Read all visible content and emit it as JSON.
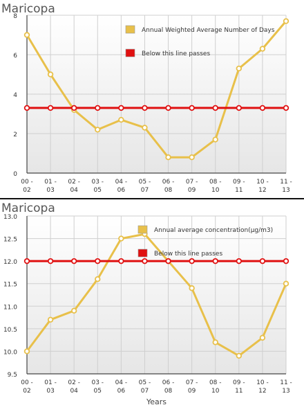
{
  "chart_data": [
    {
      "type": "line",
      "title": "Maricopa",
      "xlabel": "",
      "ylabel": "",
      "categories": [
        "00 - 02",
        "01 - 03",
        "02 - 04",
        "03 - 05",
        "04 - 06",
        "05 - 07",
        "06 - 08",
        "07 - 09",
        "08 - 10",
        "09 - 11",
        "10 - 12",
        "11 - 13"
      ],
      "ylim": [
        0,
        8
      ],
      "yticks": [
        0,
        2,
        4,
        6,
        8
      ],
      "grid": true,
      "legend_position": "top-right",
      "series": [
        {
          "name": "Annual Weighted Average Number of Days",
          "color": "#e8c04a",
          "values": [
            7.0,
            5.0,
            3.2,
            2.2,
            2.7,
            2.3,
            0.8,
            0.8,
            1.7,
            5.3,
            6.3,
            7.7
          ]
        },
        {
          "name": "Below this line passes",
          "color": "#e01010",
          "values": [
            3.3,
            3.3,
            3.3,
            3.3,
            3.3,
            3.3,
            3.3,
            3.3,
            3.3,
            3.3,
            3.3,
            3.3
          ]
        }
      ]
    },
    {
      "type": "line",
      "title": "Maricopa",
      "xlabel": "Years",
      "ylabel": "",
      "categories": [
        "00 - 02",
        "01 - 03",
        "02 - 04",
        "03 - 05",
        "04 - 06",
        "05 - 07",
        "06 - 08",
        "07 - 09",
        "08 - 10",
        "09 - 11",
        "10 - 12",
        "11 - 13"
      ],
      "ylim": [
        9.5,
        13.0
      ],
      "yticks": [
        9.5,
        10.0,
        10.5,
        11.0,
        11.5,
        12.0,
        12.5,
        13.0
      ],
      "grid": true,
      "legend_position": "top-right",
      "series": [
        {
          "name": "Annual average concentration(μg/m3)",
          "color": "#e8c04a",
          "values": [
            10.0,
            10.7,
            10.9,
            11.6,
            12.5,
            12.6,
            12.0,
            11.4,
            10.2,
            9.9,
            10.3,
            11.5
          ]
        },
        {
          "name": "Below this line passes",
          "color": "#e01010",
          "values": [
            12.0,
            12.0,
            12.0,
            12.0,
            12.0,
            12.0,
            12.0,
            12.0,
            12.0,
            12.0,
            12.0,
            12.0
          ]
        }
      ]
    }
  ]
}
